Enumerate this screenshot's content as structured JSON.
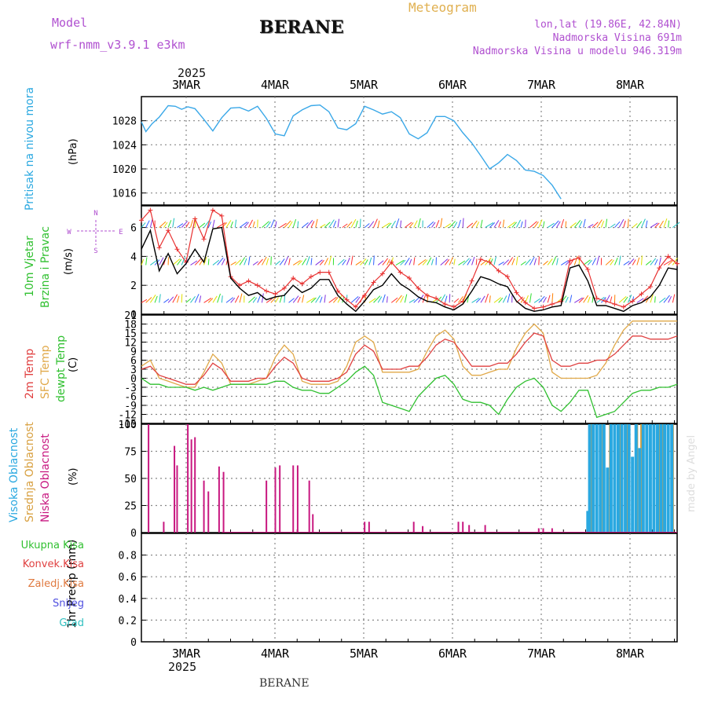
{
  "header": {
    "station": "BERANE",
    "title": "Meteogram",
    "model_label": "Model",
    "model_name": "wrf-nmm_v3.9.1 e3km",
    "lonlat": "lon,lat (19.86E, 42.84N)",
    "elevation": "Nadmorska Visina 691m",
    "model_elevation": "Nadmorska Visina u modelu 946.319m",
    "year": "2025",
    "footer_station": "BERANE",
    "credit": "made by Angel"
  },
  "colors": {
    "pressure": "#3aa8e8",
    "wind_speed": "#000000",
    "gust": "#e83030",
    "t2m": "#e04040",
    "tsfc": "#e0a848",
    "dewpt": "#30c030",
    "high_cloud": "#2aa8e0",
    "mid_cloud": "#d8a040",
    "low_cloud": "#c81880"
  },
  "chart_data": [
    {
      "type": "line",
      "title": "Pritisak na nivou mora",
      "ylabel": "(hPa)",
      "x_unit": "days since 2025-03-02T12",
      "xlim": [
        0,
        6
      ],
      "ylim": [
        1014,
        1032
      ],
      "yticks": [
        1016,
        1020,
        1024,
        1028
      ],
      "xticks": [
        "3MAR",
        "4MAR",
        "5MAR",
        "6MAR",
        "7MAR",
        "8MAR"
      ],
      "series": [
        {
          "name": "MSLP",
          "x": [
            0,
            0.05,
            0.12,
            0.2,
            0.3,
            0.38,
            0.45,
            0.52,
            0.6,
            0.7,
            0.8,
            0.9,
            1.0,
            1.1,
            1.2,
            1.3,
            1.4,
            1.5,
            1.6,
            1.7,
            1.8,
            1.9,
            2.0,
            2.1,
            2.2,
            2.3,
            2.4,
            2.5,
            2.6,
            2.7,
            2.8,
            2.9,
            3.0,
            3.1,
            3.2,
            3.3,
            3.4,
            3.5,
            3.6,
            3.7,
            3.8,
            3.9,
            4.0,
            4.1,
            4.2,
            4.3,
            4.4,
            4.5,
            4.6,
            4.7,
            4.8,
            4.9,
            5.0,
            5.1,
            5.2,
            5.3,
            5.4,
            5.5,
            5.6,
            5.7,
            5.8,
            5.9,
            6.0
          ],
          "values": [
            1027.8,
            1026.2,
            1027.5,
            1028.6,
            1030.5,
            1030.4,
            1029.9,
            1030.3,
            1030.0,
            1028.2,
            1026.3,
            1028.5,
            1030.1,
            1030.2,
            1029.6,
            1030.4,
            1028.4,
            1025.8,
            1025.5,
            1028.8,
            1029.8,
            1030.5,
            1030.6,
            1029.5,
            1026.8,
            1026.5,
            1027.5,
            1030.4,
            1029.8,
            1029.1,
            1029.5,
            1028.5,
            1025.8,
            1025.0,
            1026.0,
            1028.7,
            1028.7,
            1028.0,
            1026.0,
            1024.3,
            1022.2,
            1020.0,
            1021.0,
            1022.4,
            1021.4,
            1019.8,
            1019.6,
            1018.9,
            1017.3,
            1015.0,
            1014.2,
            1014.0,
            1014.0,
            1014.0,
            1014.0,
            1014.0,
            1014.0,
            1014.0,
            1014.0,
            1014.0,
            1014.0,
            1014.0,
            1014.0
          ]
        }
      ]
    },
    {
      "type": "line",
      "title": "10m Vjetar Brzina i Pravac",
      "ylabel": "(m/s)",
      "xlim": [
        0,
        6
      ],
      "ylim": [
        0,
        7.5
      ],
      "yticks": [
        0,
        2,
        4,
        6
      ],
      "compass_labels": {
        "north": "N",
        "south": "S",
        "west": "W",
        "east": "E"
      },
      "series": [
        {
          "name": "wind speed",
          "x": [
            0,
            0.1,
            0.2,
            0.3,
            0.4,
            0.5,
            0.6,
            0.7,
            0.8,
            0.9,
            1.0,
            1.1,
            1.2,
            1.3,
            1.4,
            1.5,
            1.6,
            1.7,
            1.8,
            1.9,
            2.0,
            2.1,
            2.2,
            2.3,
            2.4,
            2.5,
            2.6,
            2.7,
            2.8,
            2.9,
            3.0,
            3.1,
            3.2,
            3.3,
            3.4,
            3.5,
            3.6,
            3.7,
            3.8,
            3.9,
            4.0,
            4.1,
            4.2,
            4.3,
            4.4,
            4.5,
            4.6,
            4.7,
            4.8,
            4.9,
            5.0,
            5.1,
            5.2,
            5.3,
            5.4,
            5.5,
            5.6,
            5.7,
            5.8,
            5.9,
            6.0
          ],
          "values": [
            4.5,
            5.8,
            3.0,
            4.2,
            2.8,
            3.5,
            4.5,
            3.6,
            5.9,
            6.0,
            2.5,
            1.8,
            1.3,
            1.5,
            1.0,
            1.2,
            1.3,
            2.0,
            1.5,
            1.8,
            2.4,
            2.4,
            1.3,
            0.7,
            0.2,
            0.9,
            1.7,
            2.0,
            2.8,
            2.1,
            1.7,
            1.2,
            0.9,
            0.8,
            0.5,
            0.3,
            0.7,
            1.6,
            2.6,
            2.4,
            2.1,
            1.9,
            0.9,
            0.4,
            0.2,
            0.3,
            0.5,
            0.6,
            3.2,
            3.4,
            2.3,
            0.6,
            0.6,
            0.4,
            0.2,
            0.6,
            0.8,
            1.2,
            2.0,
            3.2,
            3.1
          ]
        },
        {
          "name": "gusts",
          "x": [
            0,
            0.1,
            0.2,
            0.3,
            0.4,
            0.5,
            0.6,
            0.7,
            0.8,
            0.9,
            1.0,
            1.1,
            1.2,
            1.3,
            1.4,
            1.5,
            1.6,
            1.7,
            1.8,
            1.9,
            2.0,
            2.1,
            2.2,
            2.3,
            2.4,
            2.5,
            2.6,
            2.7,
            2.8,
            2.9,
            3.0,
            3.1,
            3.2,
            3.3,
            3.4,
            3.5,
            3.6,
            3.7,
            3.8,
            3.9,
            4.0,
            4.1,
            4.2,
            4.3,
            4.4,
            4.5,
            4.6,
            4.7,
            4.8,
            4.9,
            5.0,
            5.1,
            5.2,
            5.3,
            5.4,
            5.5,
            5.6,
            5.7,
            5.8,
            5.9,
            6.0
          ],
          "values": [
            6.5,
            7.2,
            4.6,
            5.8,
            4.5,
            3.6,
            6.6,
            5.2,
            7.2,
            6.8,
            2.6,
            2.0,
            2.3,
            2.0,
            1.6,
            1.4,
            1.8,
            2.5,
            2.1,
            2.6,
            2.9,
            2.9,
            1.6,
            1.0,
            0.5,
            1.3,
            2.2,
            2.8,
            3.6,
            2.9,
            2.5,
            1.8,
            1.3,
            1.1,
            0.7,
            0.5,
            0.9,
            2.3,
            3.8,
            3.6,
            3.0,
            2.6,
            1.5,
            0.8,
            0.4,
            0.5,
            0.7,
            0.9,
            3.7,
            3.9,
            3.1,
            1.1,
            0.9,
            0.7,
            0.5,
            0.9,
            1.4,
            1.9,
            3.2,
            4.0,
            3.5
          ]
        }
      ]
    },
    {
      "type": "line",
      "title": "2m Temp / SFC Temp / dewpt Temp",
      "ylabel": "(C)",
      "xlim": [
        0,
        6
      ],
      "ylim": [
        -15,
        21
      ],
      "yticks": [
        -15,
        -12,
        -9,
        -6,
        -3,
        0,
        3,
        6,
        9,
        12,
        15,
        18,
        21
      ],
      "series": [
        {
          "name": "2m Temp",
          "x": [
            0,
            0.1,
            0.2,
            0.3,
            0.4,
            0.5,
            0.6,
            0.7,
            0.8,
            0.9,
            1.0,
            1.1,
            1.2,
            1.3,
            1.4,
            1.5,
            1.6,
            1.7,
            1.8,
            1.9,
            2.0,
            2.1,
            2.2,
            2.3,
            2.4,
            2.5,
            2.6,
            2.7,
            2.8,
            2.9,
            3.0,
            3.1,
            3.2,
            3.3,
            3.4,
            3.5,
            3.6,
            3.7,
            3.8,
            3.9,
            4.0,
            4.1,
            4.2,
            4.3,
            4.4,
            4.5,
            4.6,
            4.7,
            4.8,
            4.9,
            5.0,
            5.1,
            5.2,
            5.3,
            5.4,
            5.5,
            5.6,
            5.7,
            5.8,
            5.9,
            6.0
          ],
          "values": [
            3,
            4,
            1,
            0,
            -1,
            -2,
            -2,
            1,
            5,
            3,
            -1,
            -1,
            -1,
            0,
            0,
            4,
            7,
            5,
            0,
            -1,
            -1,
            -1,
            0,
            2,
            8,
            11,
            9,
            3,
            3,
            3,
            4,
            4,
            7,
            11,
            13,
            12,
            8,
            4,
            4,
            4,
            5,
            5,
            8,
            12,
            15,
            14,
            6,
            4,
            4,
            5,
            5,
            6,
            6,
            8,
            11,
            14,
            14,
            13,
            13,
            13,
            14
          ]
        },
        {
          "name": "SFC Temp",
          "x": [
            0,
            0.1,
            0.2,
            0.3,
            0.4,
            0.5,
            0.6,
            0.7,
            0.8,
            0.9,
            1.0,
            1.1,
            1.2,
            1.3,
            1.4,
            1.5,
            1.6,
            1.7,
            1.8,
            1.9,
            2.0,
            2.1,
            2.2,
            2.3,
            2.4,
            2.5,
            2.6,
            2.7,
            2.8,
            2.9,
            3.0,
            3.1,
            3.2,
            3.3,
            3.4,
            3.5,
            3.6,
            3.7,
            3.8,
            3.9,
            4.0,
            4.1,
            4.2,
            4.3,
            4.4,
            4.5,
            4.6,
            4.7,
            4.8,
            4.9,
            5.0,
            5.1,
            5.2,
            5.3,
            5.4,
            5.5,
            5.6,
            5.7,
            5.8,
            5.9,
            6.0
          ],
          "values": [
            4,
            6,
            0,
            -1,
            -2,
            -3,
            -3,
            2,
            8,
            5,
            -2,
            -2,
            -2,
            -1,
            0,
            7,
            11,
            8,
            -1,
            -2,
            -2,
            -2,
            -1,
            4,
            12,
            14,
            12,
            2,
            2,
            2,
            2,
            3,
            9,
            14,
            16,
            13,
            4,
            1,
            1,
            2,
            3,
            3,
            10,
            15,
            18,
            15,
            2,
            0,
            0,
            0,
            0,
            1,
            5,
            11,
            16,
            19,
            19,
            19,
            19,
            19,
            19
          ]
        },
        {
          "name": "dewpt Temp",
          "x": [
            0,
            0.1,
            0.2,
            0.3,
            0.4,
            0.5,
            0.6,
            0.7,
            0.8,
            0.9,
            1.0,
            1.1,
            1.2,
            1.3,
            1.4,
            1.5,
            1.6,
            1.7,
            1.8,
            1.9,
            2.0,
            2.1,
            2.2,
            2.3,
            2.4,
            2.5,
            2.6,
            2.7,
            2.8,
            2.9,
            3.0,
            3.1,
            3.2,
            3.3,
            3.4,
            3.5,
            3.6,
            3.7,
            3.8,
            3.9,
            4.0,
            4.1,
            4.2,
            4.3,
            4.4,
            4.5,
            4.6,
            4.7,
            4.8,
            4.9,
            5.0,
            5.1,
            5.2,
            5.3,
            5.4,
            5.5,
            5.6,
            5.7,
            5.8,
            5.9,
            6.0
          ],
          "values": [
            0,
            -2,
            -2,
            -3,
            -3,
            -3,
            -4,
            -3,
            -4,
            -3,
            -2,
            -2,
            -2,
            -2,
            -2,
            -1,
            -1,
            -3,
            -4,
            -4,
            -5,
            -5,
            -3,
            -1,
            2,
            4,
            1,
            -8,
            -9,
            -10,
            -11,
            -6,
            -3,
            0,
            1,
            -2,
            -7,
            -8,
            -8,
            -9,
            -12,
            -7,
            -3,
            -1,
            0,
            -3,
            -9,
            -11,
            -8,
            -4,
            -4,
            -13,
            -12,
            -11,
            -8,
            -5,
            -4,
            -4,
            -3,
            -3,
            -2
          ]
        }
      ]
    },
    {
      "type": "bar",
      "title": "Visoka Oblacnost / Srednja Oblacnost / Niska Oblacnost",
      "ylabel": "(%)",
      "xlim": [
        0,
        6
      ],
      "ylim": [
        0,
        100
      ],
      "yticks": [
        0,
        25,
        50,
        75,
        100
      ],
      "series": [
        {
          "name": "Niska Oblacnost",
          "x": [
            0.08,
            0.25,
            0.37,
            0.4,
            0.52,
            0.56,
            0.6,
            0.7,
            0.75,
            0.87,
            0.92,
            1.4,
            1.5,
            1.55,
            1.7,
            1.75,
            1.88,
            1.92,
            2.5,
            2.55,
            3.05,
            3.15,
            3.55,
            3.6,
            3.67,
            3.85,
            4.45,
            4.5,
            4.6
          ],
          "values": [
            100,
            10,
            80,
            62,
            100,
            86,
            88,
            48,
            38,
            61,
            56,
            48,
            60,
            62,
            62,
            62,
            48,
            17,
            10,
            10,
            10,
            6,
            10,
            10,
            7,
            7,
            4,
            4,
            4
          ]
        },
        {
          "name": "Srednja Oblacnost",
          "x": [
            5.05,
            5.15,
            5.25,
            5.35,
            5.45,
            5.55,
            5.6,
            5.7,
            5.8,
            5.85,
            5.9,
            5.95
          ],
          "values": [
            100,
            100,
            100,
            100,
            100,
            100,
            100,
            100,
            100,
            100,
            100,
            100
          ]
        },
        {
          "name": "Visoka Oblacnost",
          "x": [
            5.0,
            5.02,
            5.06,
            5.1,
            5.14,
            5.18,
            5.22,
            5.26,
            5.3,
            5.34,
            5.38,
            5.42,
            5.46,
            5.5,
            5.54,
            5.58,
            5.62,
            5.66,
            5.7,
            5.74,
            5.78,
            5.82,
            5.86,
            5.9,
            5.94
          ],
          "values": [
            20,
            100,
            100,
            100,
            100,
            100,
            60,
            100,
            100,
            100,
            100,
            100,
            100,
            70,
            100,
            78,
            100,
            100,
            100,
            100,
            100,
            100,
            100,
            100,
            100
          ]
        }
      ]
    },
    {
      "type": "bar",
      "title": "1hr Precip",
      "ylabel": "1hr Precip (mm)",
      "xlim": [
        0,
        6
      ],
      "ylim": [
        0,
        1.0
      ],
      "yticks": [
        0,
        0.2,
        0.4,
        0.6,
        0.8
      ],
      "ytick_labels": [
        "0",
        "0.2",
        "0.4",
        "0.6",
        "0.8"
      ],
      "legend": [
        "Ukupna Kisa",
        "Konvek.Kisa",
        "Zaledj.Kisa",
        "Snijeg",
        "Grad"
      ],
      "series": []
    }
  ]
}
